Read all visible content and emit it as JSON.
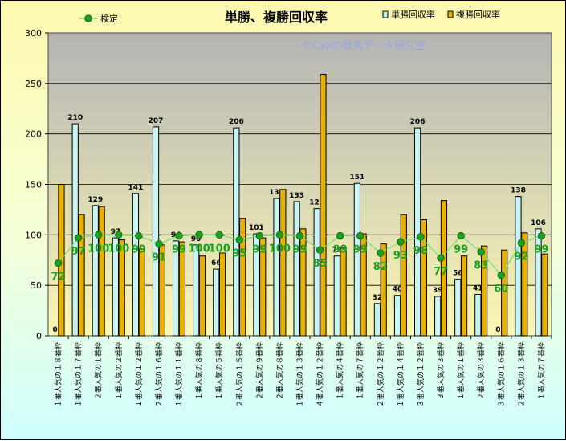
{
  "chart_data": {
    "type": "bar",
    "title": "単勝、複勝回収率",
    "watermark": "©Cajiの競馬データ研究室",
    "ylim": [
      0,
      300
    ],
    "yticks": [
      0,
      50,
      100,
      150,
      200,
      250,
      300
    ],
    "grid": true,
    "legend_position": "top",
    "categories": [
      "１番人気の１８番枠",
      "１番人気の１７番枠",
      "２番人気の１番枠",
      "１番人気の２番枠",
      "１番人気の１２番枠",
      "２番人気の１６番枠",
      "１番人気の１１番枠",
      "１番人気の８番枠",
      "１番人気の５番枠",
      "２番人気の１５番枠",
      "２番人気の９番枠",
      "２番人気の８番枠",
      "１番人気の１３番枠",
      "４番人気の１２番枠",
      "１番人気の４番枠",
      "１番人気の７番枠",
      "２番人気の１２番枠",
      "１番人気の１４番枠",
      "３番人気の１２番枠",
      "３番人気の３番枠",
      "１番人気の１番枠",
      "２番人気の３番枠",
      "３番人気の１６番枠",
      "２番人気の１３番枠",
      "１番人気の７番枠"
    ],
    "series": [
      {
        "name": "単勝回収率",
        "type": "bar",
        "color": "#c8f4f4",
        "values": [
          0,
          210,
          129,
          97,
          141,
          207,
          94,
          90,
          66,
          206,
          101,
          136,
          133,
          126,
          79,
          151,
          32,
          40,
          206,
          39,
          56,
          41,
          0,
          138,
          106
        ]
      },
      {
        "name": "複勝回収率",
        "type": "bar",
        "color": "#e8b000",
        "values": [
          150,
          120,
          128,
          95,
          86,
          90,
          93,
          79,
          82,
          116,
          97,
          145,
          106,
          259,
          87,
          101,
          91,
          120,
          115,
          134,
          79,
          89,
          85,
          102,
          81
        ]
      },
      {
        "name": "検定",
        "type": "line",
        "color": "#1aa01a",
        "values": [
          72,
          97,
          100,
          100,
          99,
          91,
          99,
          100,
          100,
          95,
          99,
          100,
          99,
          85,
          99,
          99,
          82,
          93,
          98,
          77,
          99,
          83,
          60,
          92,
          99
        ]
      }
    ]
  }
}
